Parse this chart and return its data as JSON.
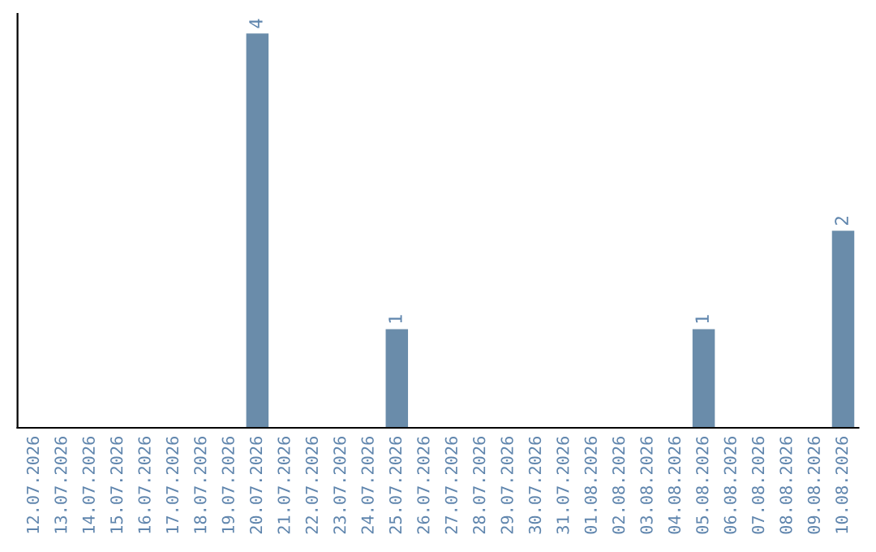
{
  "chart_data": {
    "type": "bar",
    "categories": [
      "12.07.2026",
      "13.07.2026",
      "14.07.2026",
      "15.07.2026",
      "16.07.2026",
      "17.07.2026",
      "18.07.2026",
      "19.07.2026",
      "20.07.2026",
      "21.07.2026",
      "22.07.2026",
      "23.07.2026",
      "24.07.2026",
      "25.07.2026",
      "26.07.2026",
      "27.07.2026",
      "28.07.2026",
      "29.07.2026",
      "30.07.2026",
      "31.07.2026",
      "01.08.2026",
      "02.08.2026",
      "03.08.2026",
      "04.08.2026",
      "05.08.2026",
      "06.08.2026",
      "07.08.2026",
      "08.08.2026",
      "09.08.2026",
      "10.08.2026"
    ],
    "values": [
      0,
      0,
      0,
      0,
      0,
      0,
      0,
      0,
      4,
      0,
      0,
      0,
      0,
      1,
      0,
      0,
      0,
      0,
      0,
      0,
      0,
      0,
      0,
      0,
      1,
      0,
      0,
      0,
      0,
      2
    ],
    "value_labels": [
      null,
      null,
      null,
      null,
      null,
      null,
      null,
      null,
      "4",
      null,
      null,
      null,
      null,
      "1",
      null,
      null,
      null,
      null,
      null,
      null,
      null,
      null,
      null,
      null,
      "1",
      null,
      null,
      null,
      null,
      "2"
    ],
    "color": "#6a8caa",
    "tick_labels": "x",
    "grid": false,
    "legend": false
  }
}
